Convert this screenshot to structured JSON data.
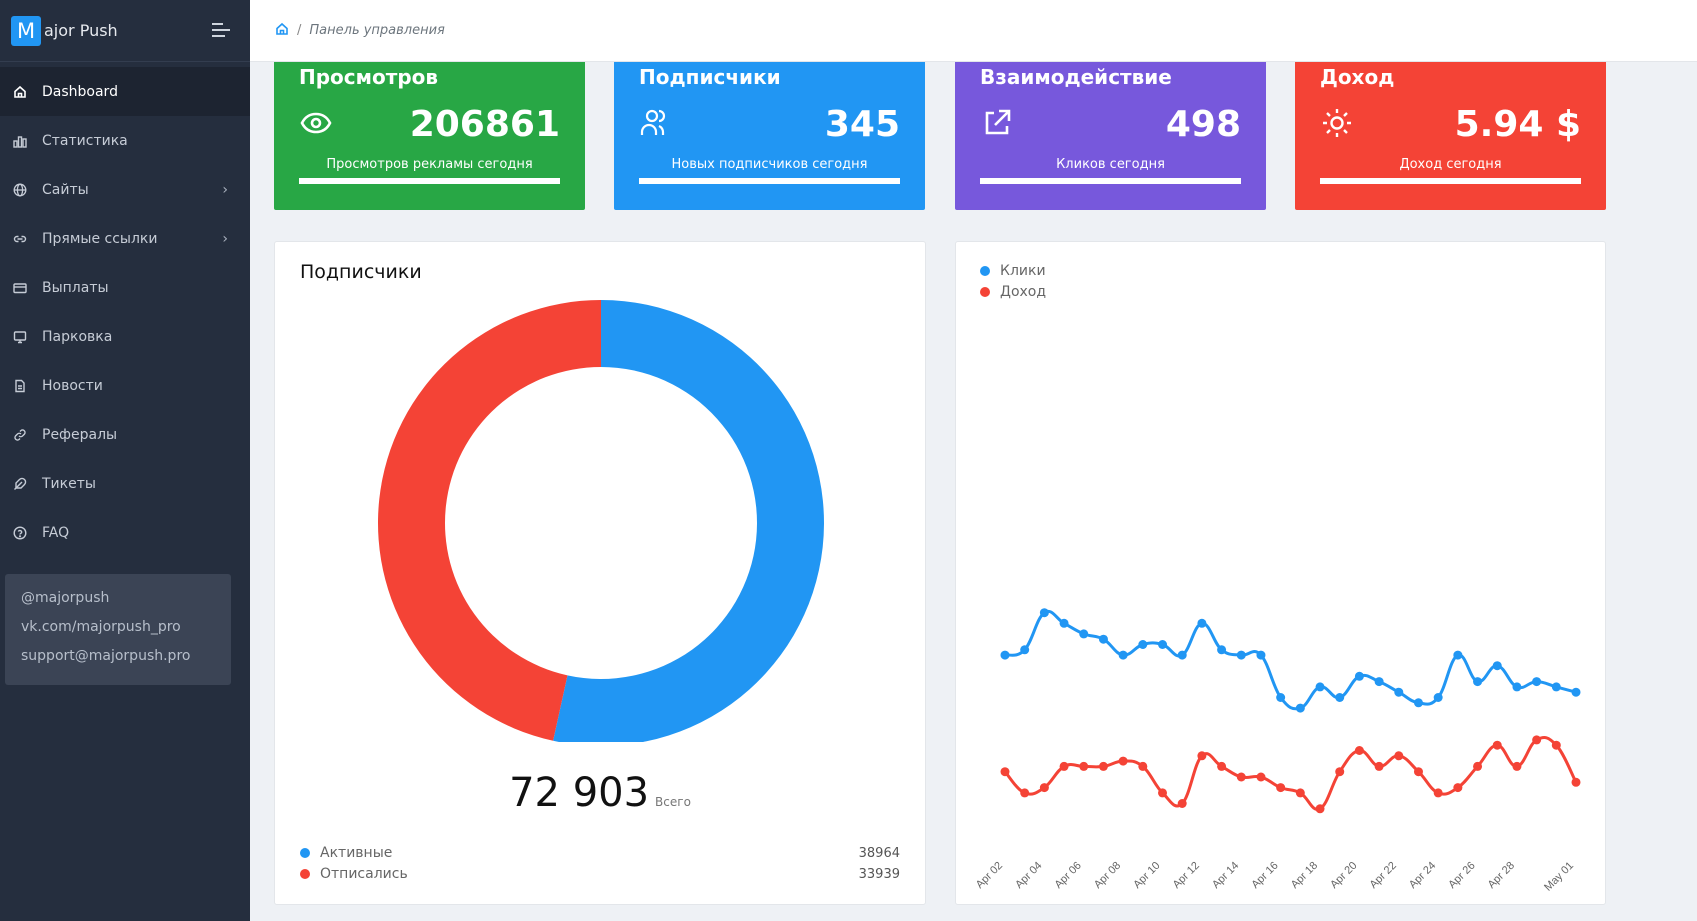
{
  "app": {
    "logo_letter": "M",
    "name": "ajor Push"
  },
  "sidebar": {
    "items": [
      {
        "label": "Dashboard",
        "icon": "home-icon",
        "active": true,
        "has_children": false
      },
      {
        "label": "Статистика",
        "icon": "bar-chart-icon",
        "active": false,
        "has_children": false
      },
      {
        "label": "Сайты",
        "icon": "globe-icon",
        "active": false,
        "has_children": true
      },
      {
        "label": "Прямые ссылки",
        "icon": "link-icon",
        "active": false,
        "has_children": true
      },
      {
        "label": "Выплаты",
        "icon": "credit-card-icon",
        "active": false,
        "has_children": false
      },
      {
        "label": "Парковка",
        "icon": "monitor-icon",
        "active": false,
        "has_children": false
      },
      {
        "label": "Новости",
        "icon": "document-icon",
        "active": false,
        "has_children": false
      },
      {
        "label": "Рефералы",
        "icon": "chain-link-icon",
        "active": false,
        "has_children": false
      },
      {
        "label": "Тикеты",
        "icon": "feather-icon",
        "active": false,
        "has_children": false
      },
      {
        "label": "FAQ",
        "icon": "help-circle-icon",
        "active": false,
        "has_children": false
      }
    ],
    "contacts": [
      "@majorpush",
      "vk.com/majorpush_pro",
      "support@majorpush.pro"
    ]
  },
  "breadcrumb": {
    "separator": "/",
    "current": "Панель управления"
  },
  "stats": [
    {
      "title": "Просмотров",
      "value": "206861",
      "subtitle": "Просмотров рекламы сегодня",
      "icon": "eye-icon",
      "color": "#28a745",
      "progress": 100
    },
    {
      "title": "Подписчики",
      "value": "345",
      "subtitle": "Новых подписчиков сегодня",
      "icon": "users-icon",
      "color": "#2196f3",
      "progress": 100
    },
    {
      "title": "Взаимодействие",
      "value": "498",
      "subtitle": "Кликов сегодня",
      "icon": "external-link-icon",
      "color": "#7758dc",
      "progress": 100
    },
    {
      "title": "Доход",
      "value": "5.94 $",
      "subtitle": "Доход сегодня",
      "icon": "sun-icon",
      "color": "#f44336",
      "progress": 100
    }
  ],
  "subscribers_panel": {
    "title": "Подписчики",
    "total": "72 903",
    "total_label": "Всего"
  },
  "chart_data": [
    {
      "type": "pie",
      "title": "Подписчики",
      "donut": true,
      "categories": [
        "Активные",
        "Отписались"
      ],
      "values": [
        38964,
        33939
      ],
      "colors": [
        "#2196f3",
        "#f44336"
      ],
      "legend": "bottom"
    },
    {
      "type": "line",
      "title": "",
      "legend": "top-left",
      "x": [
        "Apr 02",
        "Apr 03",
        "Apr 04",
        "Apr 05",
        "Apr 06",
        "Apr 07",
        "Apr 08",
        "Apr 09",
        "Apr 10",
        "Apr 11",
        "Apr 12",
        "Apr 13",
        "Apr 14",
        "Apr 15",
        "Apr 16",
        "Apr 17",
        "Apr 18",
        "Apr 19",
        "Apr 20",
        "Apr 21",
        "Apr 22",
        "Apr 23",
        "Apr 24",
        "Apr 25",
        "Apr 26",
        "Apr 27",
        "Apr 28",
        "Apr 29",
        "Apr 30",
        "May 01"
      ],
      "xtick_labels": [
        "Apr 02",
        "Apr 04",
        "Apr 06",
        "Apr 08",
        "Apr 10",
        "Apr 12",
        "Apr 14",
        "Apr 16",
        "Apr 18",
        "Apr 20",
        "Apr 22",
        "Apr 24",
        "Apr 26",
        "Apr 28",
        "May 01"
      ],
      "ylim": [
        0,
        100
      ],
      "grid": false,
      "series": [
        {
          "name": "Клики",
          "color": "#2196f3",
          "values": [
            33,
            34,
            41,
            39,
            37,
            36,
            33,
            35,
            35,
            33,
            39,
            34,
            33,
            33,
            25,
            23,
            27,
            25,
            29,
            28,
            26,
            24,
            25,
            33,
            28,
            31,
            27,
            28,
            27,
            26
          ]
        },
        {
          "name": "Доход",
          "color": "#f44336",
          "values": [
            11,
            7,
            8,
            12,
            12,
            12,
            13,
            12,
            7,
            5,
            14,
            12,
            10,
            10,
            8,
            7,
            4,
            11,
            15,
            12,
            14,
            11,
            7,
            8,
            12,
            16,
            12,
            17,
            16,
            9
          ]
        }
      ]
    }
  ]
}
